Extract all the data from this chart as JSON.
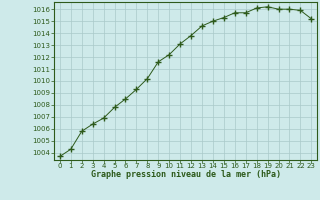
{
  "x": [
    0,
    1,
    2,
    3,
    4,
    5,
    6,
    7,
    8,
    9,
    10,
    11,
    12,
    13,
    14,
    15,
    16,
    17,
    18,
    19,
    20,
    21,
    22,
    23
  ],
  "y": [
    1003.7,
    1004.3,
    1005.8,
    1006.4,
    1006.9,
    1007.8,
    1008.5,
    1009.3,
    1010.2,
    1011.6,
    1012.2,
    1013.1,
    1013.8,
    1014.6,
    1015.0,
    1015.3,
    1015.7,
    1015.7,
    1016.1,
    1016.2,
    1016.0,
    1016.0,
    1015.9,
    1015.2
  ],
  "line_color": "#2d5a1b",
  "marker": "+",
  "marker_size": 4,
  "marker_linewidth": 1.0,
  "bg_color": "#ceeaea",
  "grid_color": "#aacaca",
  "xlabel": "Graphe pression niveau de la mer (hPa)",
  "xlabel_ticks": [
    "0",
    "1",
    "2",
    "3",
    "4",
    "5",
    "6",
    "7",
    "8",
    "9",
    "10",
    "11",
    "12",
    "13",
    "14",
    "15",
    "16",
    "17",
    "18",
    "19",
    "20",
    "21",
    "22",
    "23"
  ],
  "yticks": [
    1004,
    1005,
    1006,
    1007,
    1008,
    1009,
    1010,
    1011,
    1012,
    1013,
    1014,
    1015,
    1016
  ],
  "ylim": [
    1003.4,
    1016.6
  ],
  "xlim": [
    -0.5,
    23.5
  ],
  "tick_color": "#2d5a1b",
  "label_fontsize": 5.0,
  "xlabel_fontsize": 6.0
}
